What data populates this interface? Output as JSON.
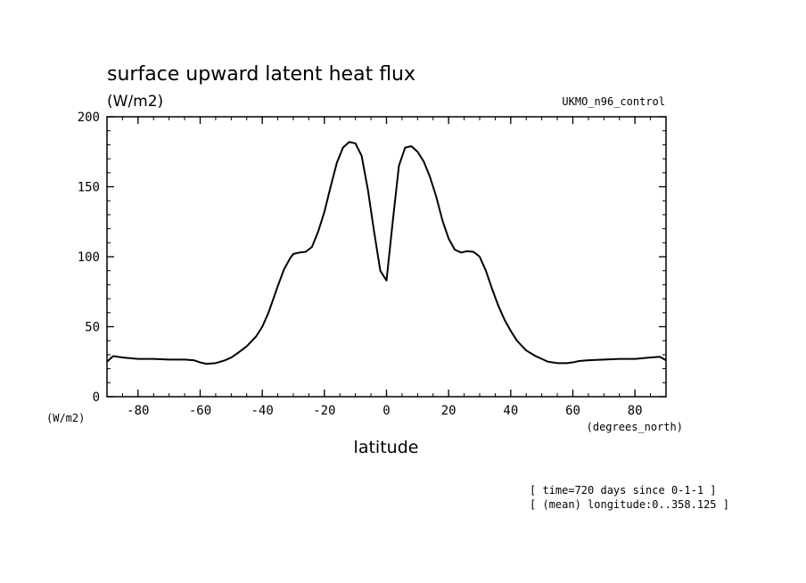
{
  "chart_data": {
    "type": "line",
    "title": "surface upward latent heat flux",
    "units": "(W/m2)",
    "source_label": "UKMO_n96_control",
    "ylabel": "(W/m2)",
    "xlabel": "latitude",
    "xunits": "(degrees_north)",
    "xlim": [
      -90,
      90
    ],
    "ylim": [
      0,
      200
    ],
    "xticks": [
      -80,
      -60,
      -40,
      -20,
      0,
      20,
      40,
      60,
      80
    ],
    "xtick_labels": [
      "-80",
      "-60",
      "-40",
      "-20",
      "0",
      "20",
      "40",
      "60",
      "80"
    ],
    "yticks": [
      0,
      50,
      100,
      150,
      200
    ],
    "ytick_labels": [
      "0",
      "50",
      "100",
      "150",
      "200"
    ],
    "grid": false,
    "series": [
      {
        "x": [
          -90,
          -88,
          -85,
          -80,
          -75,
          -70,
          -65,
          -62,
          -60,
          -58,
          -55,
          -52,
          -50,
          -48,
          -45,
          -42,
          -40,
          -38,
          -35,
          -33,
          -31,
          -30,
          -28,
          -26,
          -24,
          -22,
          -20,
          -18,
          -16,
          -14,
          -12,
          -10,
          -8,
          -6,
          -4,
          -2,
          0,
          2,
          4,
          6,
          8,
          10,
          12,
          14,
          16,
          18,
          20,
          22,
          24,
          26,
          28,
          30,
          32,
          34,
          36,
          38,
          40,
          42,
          45,
          48,
          50,
          52,
          55,
          58,
          60,
          62,
          65,
          70,
          75,
          80,
          85,
          88,
          90
        ],
        "y": [
          25,
          29,
          28,
          27,
          27,
          26.5,
          26.5,
          26,
          24.5,
          23.5,
          24,
          26,
          28,
          31,
          36,
          43,
          50,
          60,
          79,
          91,
          99,
          102,
          103,
          103.5,
          107,
          118,
          132,
          150,
          167,
          178,
          182,
          181,
          172,
          148,
          118,
          90,
          83,
          125,
          165,
          178,
          179,
          175,
          168,
          157,
          143,
          126,
          113,
          105,
          103,
          104,
          103.5,
          100,
          90,
          77,
          65,
          55,
          47,
          40,
          33,
          29,
          27,
          25,
          24,
          24,
          24.5,
          25.5,
          26,
          26.5,
          27,
          27,
          28,
          28.5,
          26
        ]
      }
    ],
    "notes": [
      "[ time=720 days since 0-1-1 ]",
      "[ (mean) longitude:0..358.125 ]"
    ]
  }
}
